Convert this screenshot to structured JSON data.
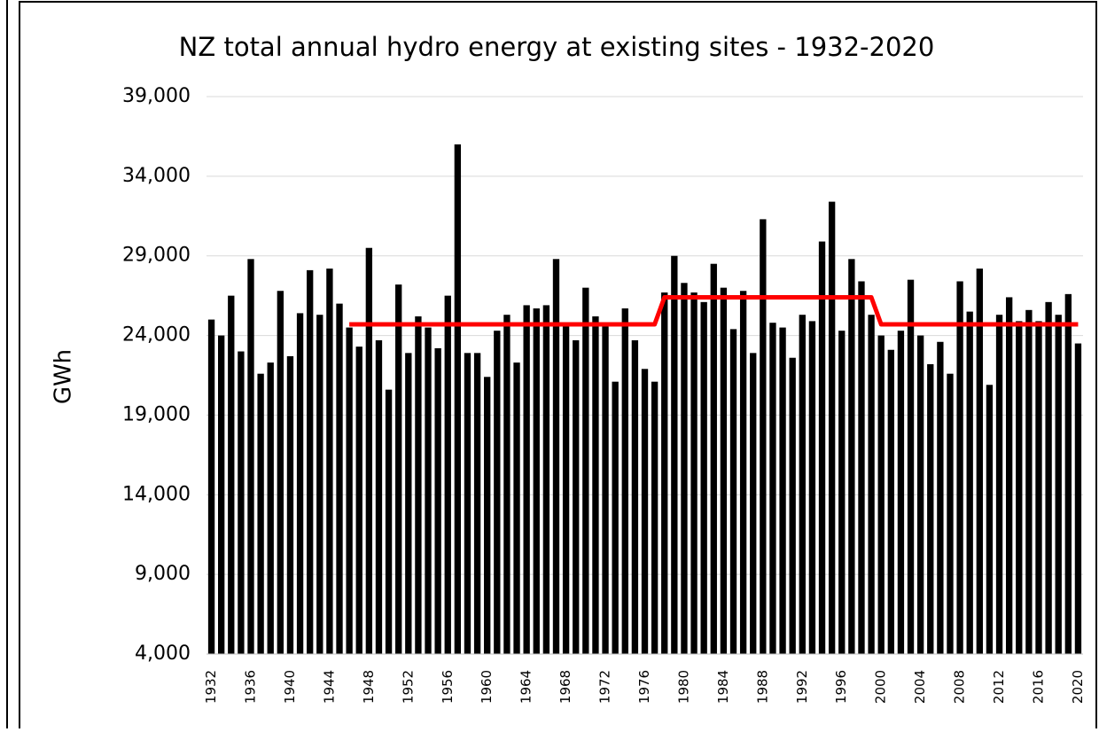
{
  "chart_data": {
    "type": "bar",
    "title": "NZ total annual hydro energy at existing sites - 1932-2020",
    "y_label": "GWh",
    "categories": [
      "1932",
      null,
      null,
      null,
      "1936",
      null,
      null,
      null,
      "1940",
      null,
      null,
      null,
      "1944",
      null,
      null,
      null,
      "1948",
      null,
      null,
      null,
      "1952",
      null,
      null,
      null,
      "1956",
      null,
      null,
      null,
      "1960",
      null,
      null,
      null,
      "1964",
      null,
      null,
      null,
      "1968",
      null,
      null,
      null,
      "1972",
      null,
      null,
      null,
      "1976",
      null,
      null,
      null,
      "1980",
      null,
      null,
      null,
      "1984",
      null,
      null,
      null,
      "1988",
      null,
      null,
      null,
      "1992",
      null,
      null,
      null,
      "1996",
      null,
      null,
      null,
      "2000",
      null,
      null,
      null,
      "2004",
      null,
      null,
      null,
      "2008",
      null,
      null,
      null,
      "2012",
      null,
      null,
      null,
      "2016",
      null,
      null,
      null,
      "2020"
    ],
    "series": [
      {
        "type": "bar",
        "color": "#000000",
        "values": [
          25000,
          24000,
          26500,
          23000,
          28800,
          21600,
          22300,
          26800,
          22700,
          25400,
          28100,
          25300,
          28200,
          26000,
          24500,
          23300,
          29500,
          23700,
          20600,
          27200,
          22900,
          25200,
          24500,
          23200,
          26500,
          36000,
          22900,
          22900,
          21400,
          24300,
          25300,
          22300,
          25900,
          25700,
          25900,
          28800,
          24600,
          23700,
          27000,
          25200,
          24600,
          21100,
          25700,
          23700,
          21900,
          21100,
          26700,
          29000,
          27300,
          26700,
          26100,
          28500,
          27000,
          24400,
          26800,
          22900,
          31300,
          24800,
          24500,
          22600,
          25300,
          24900,
          29900,
          32400,
          24300,
          28800,
          27400,
          25300,
          24000,
          23100,
          24300,
          27500,
          24000,
          22200,
          23600,
          21600,
          27400,
          25500,
          28200,
          20900,
          25300,
          26400,
          24900,
          25600,
          24900,
          26100,
          25300,
          26600,
          23500
        ]
      },
      {
        "type": "line",
        "color": "#ff0000",
        "values": [
          null,
          null,
          null,
          null,
          null,
          null,
          null,
          null,
          null,
          null,
          null,
          null,
          null,
          null,
          24700,
          24700,
          24700,
          24700,
          24700,
          24700,
          24700,
          24700,
          24700,
          24700,
          24700,
          24700,
          24700,
          24700,
          24700,
          24700,
          24700,
          24700,
          24700,
          24700,
          24700,
          24700,
          24700,
          24700,
          24700,
          24700,
          24700,
          24700,
          24700,
          24700,
          24700,
          24700,
          26400,
          26400,
          26400,
          26400,
          26400,
          26400,
          26400,
          26400,
          26400,
          26400,
          26400,
          26400,
          26400,
          26400,
          26400,
          26400,
          26400,
          26400,
          26400,
          26400,
          26400,
          26400,
          24700,
          24700,
          24700,
          24700,
          24700,
          24700,
          24700,
          24700,
          24700,
          24700,
          24700,
          24700,
          24700,
          24700,
          24700,
          24700,
          24700,
          24700,
          24700,
          24700,
          24700
        ]
      }
    ],
    "ylim": [
      4000,
      39000
    ],
    "yticks": [
      {
        "value": 4000,
        "label": "4,000"
      },
      {
        "value": 9000,
        "label": "9,000"
      },
      {
        "value": 14000,
        "label": "14,000"
      },
      {
        "value": 19000,
        "label": "19,000"
      },
      {
        "value": 24000,
        "label": "24,000"
      },
      {
        "value": 29000,
        "label": "29,000"
      },
      {
        "value": 34000,
        "label": "34,000"
      },
      {
        "value": 39000,
        "label": "39,000"
      }
    ],
    "grid": true
  }
}
